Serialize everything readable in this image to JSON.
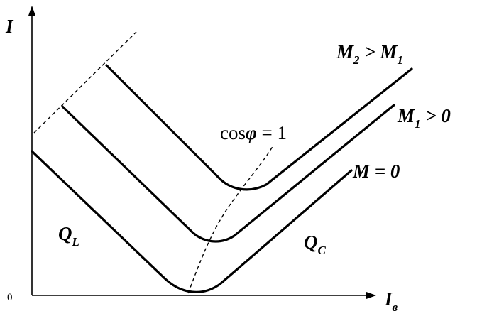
{
  "axes": {
    "y_label": "I",
    "x_label": [
      {
        "text": "I"
      },
      {
        "sub": "в"
      }
    ],
    "origin": "0"
  },
  "curves": [
    {
      "label": [
        {
          "text": "M"
        },
        {
          "sub": "2"
        },
        {
          "text": " > M"
        },
        {
          "sub": "1"
        }
      ]
    },
    {
      "label": [
        {
          "text": "M"
        },
        {
          "sub": "1"
        },
        {
          "text": " > 0"
        }
      ]
    },
    {
      "label": [
        {
          "text": "M = 0"
        }
      ]
    }
  ],
  "unity_line": {
    "label": [
      {
        "plain": "cos"
      },
      {
        "text": "φ"
      },
      {
        "plain": " = 1"
      }
    ]
  },
  "regions": [
    {
      "label": [
        {
          "text": "Q"
        },
        {
          "sub": "L"
        }
      ]
    },
    {
      "label": [
        {
          "text": "Q"
        },
        {
          "sub": "C"
        }
      ]
    }
  ]
}
